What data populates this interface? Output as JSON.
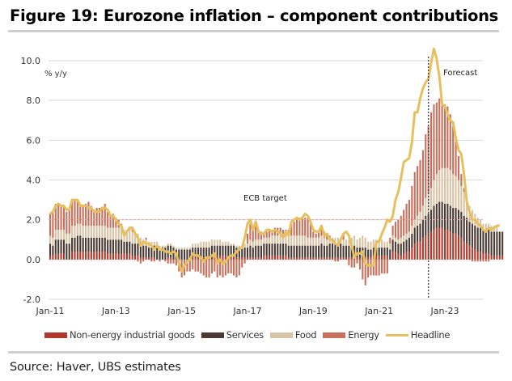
{
  "title": "Figure 19: Eurozone inflation – component contributions",
  "source": "Source: Haver, UBS estimates",
  "chart_data": {
    "type": "bar",
    "subtype": "stacked-bar-with-line",
    "title": "Figure 19: Eurozone inflation – component contributions",
    "ylabel": "% y/y",
    "xlabel": "",
    "ylim": [
      -2.0,
      10.0
    ],
    "yticks": [
      -2.0,
      0.0,
      2.0,
      4.0,
      6.0,
      8.0,
      10.0
    ],
    "ytick_labels": [
      "-2.0",
      "0.0",
      "2.0",
      "4.0",
      "6.0",
      "8.0",
      "10.0"
    ],
    "xtick_labels": [
      "Jan-11",
      "Jan-13",
      "Jan-15",
      "Jan-17",
      "Jan-19",
      "Jan-21",
      "Jan-23"
    ],
    "xtick_month_index": [
      0,
      24,
      48,
      72,
      96,
      120,
      144
    ],
    "frequency": "monthly",
    "start": "Jan-11",
    "grid": "horizontal",
    "reference_line": {
      "value": 2.0,
      "label": "ECB target",
      "style": "dashed",
      "color": "#e8a5a0"
    },
    "forecast_marker": {
      "month_index": 138,
      "label": "Forecast",
      "style": "dotted"
    },
    "legend_position": "bottom",
    "series": [
      {
        "name": "Non-energy industrial goods",
        "color": "#b0392b",
        "kind": "bar",
        "values": [
          0.2,
          0.2,
          0.3,
          0.3,
          0.3,
          0.3,
          0.0,
          0.0,
          0.4,
          0.4,
          0.4,
          0.4,
          0.4,
          0.4,
          0.4,
          0.4,
          0.4,
          0.4,
          0.4,
          0.4,
          0.4,
          0.3,
          0.3,
          0.3,
          0.3,
          0.3,
          0.3,
          0.3,
          0.3,
          0.3,
          0.2,
          0.2,
          0.2,
          0.1,
          0.1,
          0.1,
          0.1,
          0.1,
          0.1,
          0.0,
          0.0,
          0.0,
          0.0,
          0.1,
          0.1,
          0.0,
          0.0,
          0.0,
          0.0,
          0.0,
          0.0,
          0.0,
          0.1,
          0.1,
          0.1,
          0.1,
          0.1,
          0.1,
          0.1,
          0.2,
          0.2,
          0.2,
          0.2,
          0.2,
          0.2,
          0.2,
          0.2,
          0.2,
          0.1,
          0.1,
          0.1,
          0.1,
          0.1,
          0.1,
          0.1,
          0.1,
          0.1,
          0.1,
          0.2,
          0.2,
          0.2,
          0.2,
          0.2,
          0.2,
          0.2,
          0.2,
          0.2,
          0.1,
          0.1,
          0.1,
          0.1,
          0.1,
          0.1,
          0.1,
          0.1,
          0.1,
          0.1,
          0.1,
          0.1,
          0.1,
          0.1,
          0.1,
          0.1,
          0.1,
          0.1,
          0.1,
          0.1,
          0.1,
          0.1,
          0.1,
          0.1,
          0.1,
          0.1,
          0.1,
          0.1,
          0.1,
          0.1,
          0.1,
          0.2,
          0.2,
          0.2,
          0.2,
          0.2,
          0.2,
          0.0,
          0.4,
          0.4,
          0.3,
          0.2,
          0.3,
          0.4,
          0.4,
          0.6,
          0.8,
          0.9,
          0.9,
          1.1,
          1.2,
          1.3,
          1.4,
          1.5,
          1.6,
          1.6,
          1.6,
          1.5,
          1.5,
          1.4,
          1.3,
          1.3,
          1.2,
          1.1,
          0.9,
          0.8,
          0.7,
          0.6,
          0.5,
          0.4,
          0.4,
          0.3,
          0.3,
          0.3,
          0.2,
          0.2,
          0.2,
          0.2,
          0.2
        ]
      },
      {
        "name": "Services",
        "color": "#4a3a31",
        "kind": "bar",
        "values": [
          0.6,
          0.5,
          0.7,
          0.7,
          0.7,
          0.7,
          0.8,
          0.8,
          0.7,
          0.7,
          0.8,
          0.8,
          0.7,
          0.7,
          0.7,
          0.7,
          0.7,
          0.7,
          0.7,
          0.7,
          0.7,
          0.7,
          0.7,
          0.7,
          0.7,
          0.7,
          0.7,
          0.6,
          0.6,
          0.6,
          0.6,
          0.6,
          0.6,
          0.6,
          0.6,
          0.6,
          0.5,
          0.5,
          0.6,
          0.7,
          0.5,
          0.6,
          0.6,
          0.6,
          0.6,
          0.6,
          0.5,
          0.5,
          0.5,
          0.5,
          0.5,
          0.5,
          0.5,
          0.5,
          0.5,
          0.5,
          0.5,
          0.5,
          0.5,
          0.5,
          0.5,
          0.5,
          0.5,
          0.5,
          0.5,
          0.5,
          0.5,
          0.5,
          0.5,
          0.5,
          0.5,
          0.5,
          0.5,
          0.6,
          0.5,
          0.6,
          0.6,
          0.6,
          0.6,
          0.6,
          0.6,
          0.6,
          0.6,
          0.6,
          0.6,
          0.6,
          0.6,
          0.6,
          0.6,
          0.6,
          0.6,
          0.6,
          0.6,
          0.6,
          0.6,
          0.6,
          0.6,
          0.6,
          0.6,
          0.7,
          0.6,
          0.6,
          0.7,
          0.7,
          0.7,
          0.7,
          0.7,
          0.6,
          0.6,
          0.6,
          0.6,
          0.6,
          0.5,
          0.5,
          0.5,
          0.5,
          0.4,
          0.4,
          0.4,
          0.4,
          0.4,
          0.4,
          0.4,
          0.4,
          0.5,
          0.6,
          0.5,
          0.5,
          0.6,
          0.6,
          0.6,
          0.7,
          0.7,
          0.8,
          0.8,
          0.9,
          0.9,
          1.0,
          1.0,
          1.1,
          1.2,
          1.2,
          1.3,
          1.3,
          1.3,
          1.3,
          1.3,
          1.3,
          1.3,
          1.3,
          1.3,
          1.3,
          1.3,
          1.2,
          1.2,
          1.2,
          1.2,
          1.2,
          1.2,
          1.2,
          1.2,
          1.2,
          1.2,
          1.2,
          1.2,
          1.2
        ]
      },
      {
        "name": "Food",
        "color": "#d8c3a5",
        "kind": "bar",
        "values": [
          0.4,
          0.4,
          0.5,
          0.5,
          0.5,
          0.5,
          0.5,
          0.5,
          0.6,
          0.6,
          0.6,
          0.6,
          0.6,
          0.6,
          0.6,
          0.6,
          0.6,
          0.6,
          0.6,
          0.6,
          0.6,
          0.6,
          0.6,
          0.6,
          0.6,
          0.6,
          0.6,
          0.6,
          0.6,
          0.6,
          0.6,
          0.6,
          0.5,
          0.4,
          0.3,
          0.3,
          0.3,
          0.3,
          0.2,
          0.2,
          0.2,
          0.1,
          0.1,
          0.1,
          0.1,
          0.1,
          0.1,
          0.1,
          0.1,
          0.1,
          0.1,
          0.1,
          0.2,
          0.2,
          0.2,
          0.3,
          0.3,
          0.3,
          0.3,
          0.3,
          0.3,
          0.3,
          0.3,
          0.2,
          0.2,
          0.2,
          0.1,
          0.1,
          0.1,
          0.1,
          0.1,
          0.2,
          0.2,
          0.3,
          0.3,
          0.3,
          0.3,
          0.3,
          0.3,
          0.3,
          0.3,
          0.4,
          0.4,
          0.4,
          0.5,
          0.5,
          0.5,
          0.5,
          0.5,
          0.5,
          0.5,
          0.5,
          0.5,
          0.5,
          0.4,
          0.4,
          0.4,
          0.4,
          0.4,
          0.4,
          0.4,
          0.3,
          0.3,
          0.3,
          0.3,
          0.3,
          0.3,
          0.3,
          0.3,
          0.3,
          0.4,
          0.5,
          0.4,
          0.5,
          0.6,
          0.5,
          0.4,
          0.4,
          0.4,
          0.4,
          0.4,
          0.4,
          0.3,
          0.3,
          0.3,
          0.2,
          0.2,
          0.2,
          0.3,
          0.3,
          0.3,
          0.3,
          0.4,
          0.4,
          0.5,
          0.6,
          0.7,
          0.9,
          1.0,
          1.1,
          1.3,
          1.5,
          1.6,
          1.7,
          1.8,
          1.8,
          1.8,
          1.7,
          1.6,
          1.5,
          1.3,
          1.2,
          1.0,
          0.8,
          0.7,
          0.6,
          0.5,
          0.4,
          0.3,
          0.3,
          0.3,
          0.3,
          0.3,
          0.3
        ]
      },
      {
        "name": "Energy",
        "color": "#c8705c",
        "kind": "bar",
        "values": [
          1.1,
          1.3,
          1.3,
          1.3,
          1.2,
          1.2,
          1.1,
          1.2,
          1.3,
          1.3,
          1.2,
          1.0,
          1.0,
          1.1,
          1.2,
          1.0,
          0.8,
          0.9,
          0.9,
          0.9,
          1.1,
          0.8,
          0.6,
          0.7,
          0.5,
          0.4,
          0.2,
          0.0,
          0.0,
          0.1,
          0.2,
          0.0,
          -0.1,
          -0.2,
          -0.1,
          0.1,
          0.0,
          -0.1,
          -0.1,
          0.0,
          -0.1,
          0.0,
          -0.1,
          -0.2,
          -0.2,
          -0.2,
          -0.3,
          -0.6,
          -0.9,
          -0.8,
          -0.6,
          -0.6,
          -0.5,
          -0.6,
          -0.6,
          -0.7,
          -0.8,
          -0.9,
          -0.9,
          -0.7,
          -0.6,
          -0.9,
          -0.8,
          -0.9,
          -0.8,
          -0.7,
          -0.7,
          -0.8,
          -0.9,
          -0.8,
          -0.4,
          -0.2,
          0.5,
          0.8,
          0.7,
          0.7,
          0.5,
          0.4,
          0.2,
          0.3,
          0.4,
          0.3,
          0.4,
          0.4,
          0.3,
          0.2,
          0.2,
          0.3,
          0.6,
          0.7,
          0.9,
          0.9,
          0.9,
          0.9,
          1.0,
          0.7,
          0.3,
          0.2,
          0.3,
          0.4,
          0.3,
          0.2,
          0.1,
          0.0,
          -0.1,
          -0.1,
          0.0,
          0.3,
          0.0,
          -0.3,
          -0.4,
          -0.4,
          -0.2,
          -0.5,
          -1.0,
          -1.3,
          -0.9,
          -0.8,
          -0.8,
          -0.8,
          -0.8,
          -0.7,
          -0.7,
          -0.7,
          0.3,
          0.5,
          0.8,
          1.0,
          1.1,
          1.3,
          1.5,
          1.6,
          2.0,
          2.4,
          2.5,
          2.6,
          2.8,
          3.2,
          3.4,
          3.8,
          3.8,
          3.6,
          3.6,
          3.4,
          3.2,
          3.1,
          2.8,
          2.4,
          1.9,
          1.2,
          0.6,
          0.2,
          0.0,
          0.0,
          -0.1,
          -0.1,
          -0.1,
          -0.1,
          -0.1,
          -0.1,
          -0.1,
          0.0,
          0.0,
          0.0,
          0.0,
          0.0,
          0.0
        ]
      },
      {
        "name": "Headline",
        "color": "#e7c05d",
        "kind": "line",
        "values": [
          2.3,
          2.4,
          2.7,
          2.8,
          2.7,
          2.7,
          2.5,
          2.5,
          3.0,
          3.0,
          3.0,
          2.7,
          2.7,
          2.7,
          2.6,
          2.6,
          2.4,
          2.4,
          2.4,
          2.6,
          2.6,
          2.5,
          2.2,
          2.2,
          2.0,
          1.8,
          1.7,
          1.2,
          1.4,
          1.6,
          1.6,
          1.3,
          1.1,
          0.7,
          0.9,
          0.8,
          0.8,
          0.7,
          0.5,
          0.7,
          0.5,
          0.5,
          0.4,
          0.4,
          0.3,
          0.4,
          0.3,
          -0.2,
          -0.6,
          -0.3,
          -0.1,
          0.0,
          0.3,
          0.2,
          0.2,
          0.1,
          -0.1,
          0.1,
          0.1,
          0.2,
          0.3,
          -0.2,
          0.0,
          -0.2,
          -0.1,
          0.1,
          0.2,
          0.2,
          0.4,
          0.5,
          0.6,
          1.1,
          1.8,
          2.0,
          1.5,
          1.9,
          1.4,
          1.3,
          1.3,
          1.5,
          1.5,
          1.4,
          1.5,
          1.4,
          1.3,
          1.1,
          1.4,
          1.2,
          1.9,
          2.0,
          2.1,
          2.0,
          2.1,
          2.3,
          2.2,
          1.9,
          1.5,
          1.4,
          1.4,
          1.7,
          1.2,
          1.3,
          1.0,
          1.0,
          0.8,
          0.7,
          1.0,
          1.3,
          1.4,
          1.2,
          0.7,
          0.1,
          0.3,
          0.3,
          0.4,
          -0.2,
          -0.3,
          -0.3,
          -0.3,
          0.9,
          0.9,
          1.3,
          1.6,
          2.0,
          1.9,
          2.2,
          3.0,
          3.4,
          4.1,
          4.9,
          5.0,
          5.1,
          5.9,
          7.4,
          7.4,
          8.1,
          8.6,
          8.9,
          9.1,
          9.9,
          10.6,
          10.1,
          9.2,
          7.8,
          7.7,
          7.3,
          7.0,
          6.9,
          6.1,
          5.5,
          5.3,
          4.3,
          2.9,
          2.4,
          2.0,
          2.0,
          1.8,
          1.7,
          1.5,
          1.4,
          1.6,
          1.5,
          1.6,
          1.7,
          1.7
        ]
      }
    ]
  },
  "legend": [
    {
      "label": "Non-energy industrial goods",
      "color": "#b0392b",
      "kind": "bar"
    },
    {
      "label": "Services",
      "color": "#4a3a31",
      "kind": "bar"
    },
    {
      "label": "Food",
      "color": "#d8c3a5",
      "kind": "bar"
    },
    {
      "label": "Energy",
      "color": "#c8705c",
      "kind": "bar"
    },
    {
      "label": "Headline",
      "color": "#e7c05d",
      "kind": "line"
    }
  ]
}
